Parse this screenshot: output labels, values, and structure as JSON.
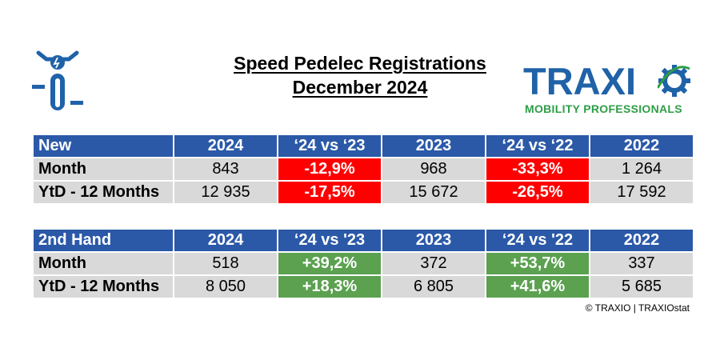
{
  "icon": "speed-pedelec-icon",
  "title": {
    "line1": "Speed Pedelec Registrations",
    "line2": "December 2024"
  },
  "logo": {
    "name": "TRAXIO",
    "tagline": "MOBILITY PROFESSIONALS",
    "brand_color": "#1f62a8",
    "tagline_color": "#2e9e46"
  },
  "colors": {
    "header_bg": "#2b59a8",
    "cell_bg": "#d9d9d9",
    "negative": "#ff0000",
    "positive": "#5ba150"
  },
  "chart_data": [
    {
      "type": "table",
      "columns": [
        "New",
        "2024",
        "‘24 vs ‘23",
        "2023",
        "‘24 vs ‘22",
        "2022"
      ],
      "rows": [
        {
          "label": "Month",
          "cells": [
            "843",
            "-12,9%",
            "968",
            "-33,3%",
            "1 264"
          ]
        },
        {
          "label": "YtD - 12 Months",
          "cells": [
            "12 935",
            "-17,5%",
            "15 672",
            "-26,5%",
            "17 592"
          ]
        }
      ]
    },
    {
      "type": "table",
      "columns": [
        "2nd Hand",
        "2024",
        "‘24 vs '23",
        "2023",
        "‘24 vs '22",
        "2022"
      ],
      "rows": [
        {
          "label": "Month",
          "cells": [
            "518",
            "+39,2%",
            "372",
            "+53,7%",
            "337"
          ]
        },
        {
          "label": "YtD - 12 Months",
          "cells": [
            "8 050",
            "+18,3%",
            "6 805",
            "+41,6%",
            "5 685"
          ]
        }
      ]
    }
  ],
  "copyright": "© TRAXIO | TRAXIOstat"
}
